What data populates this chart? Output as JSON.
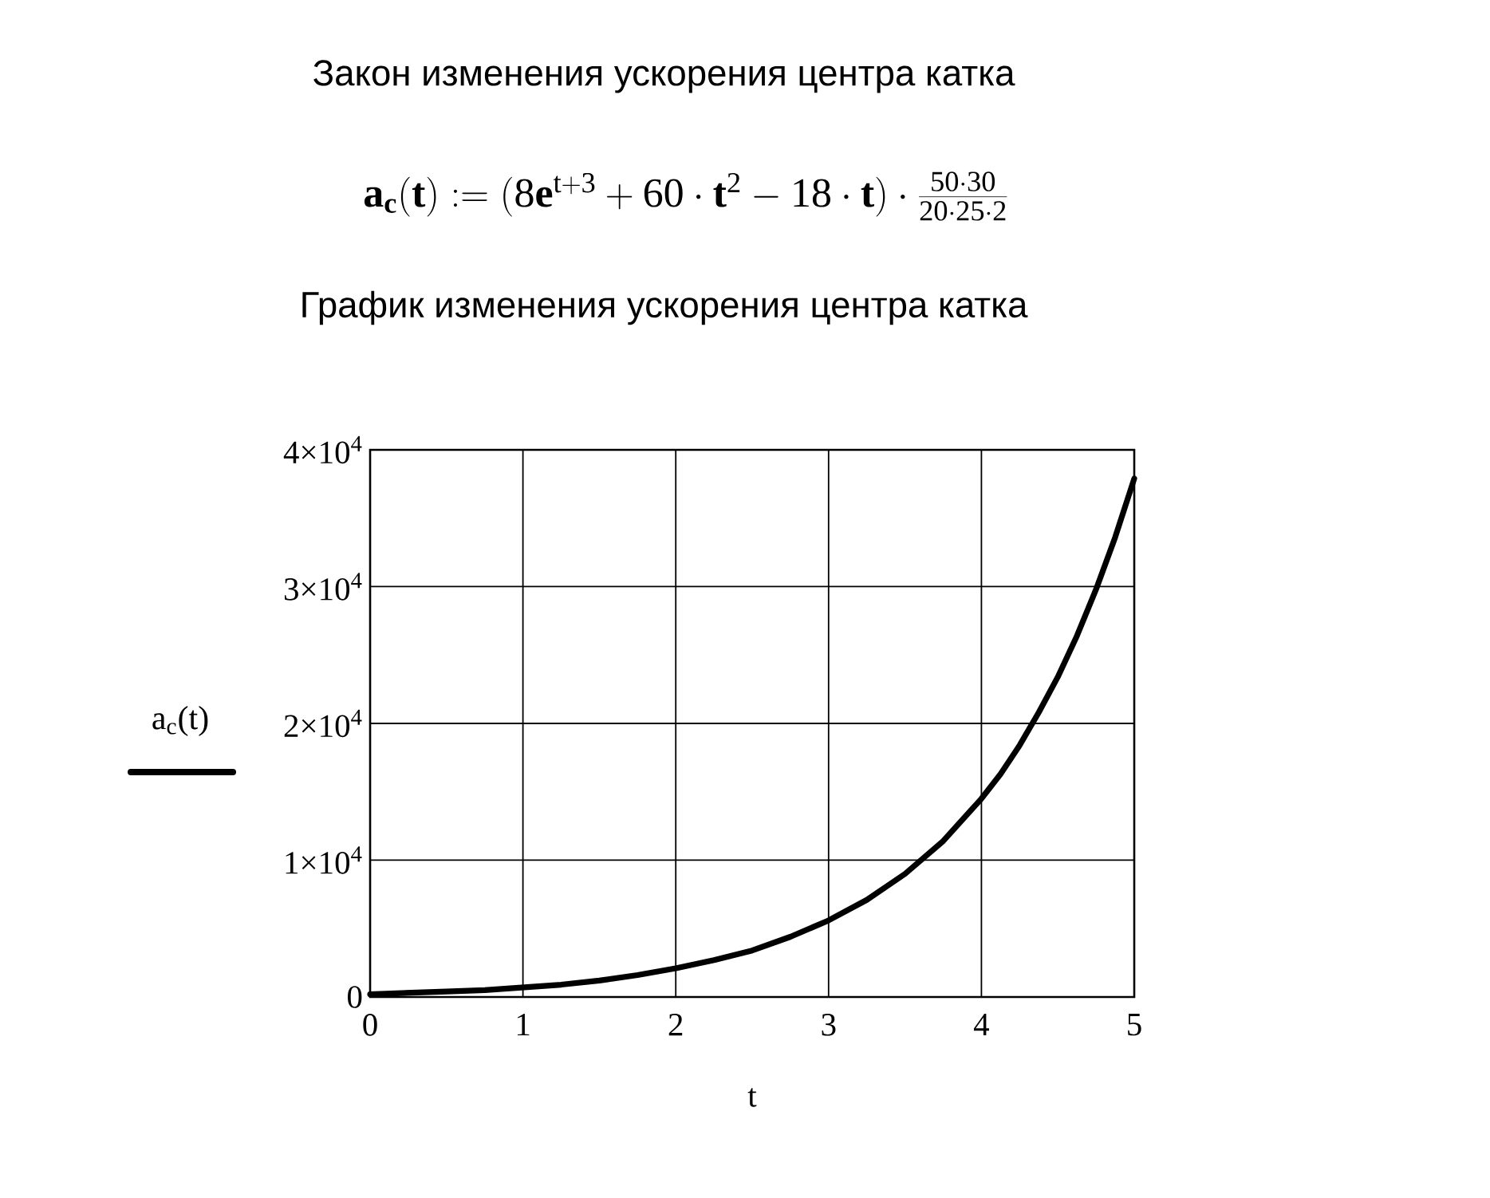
{
  "chart_data": {
    "type": "line",
    "title": "Закон изменения ускорения центра катка",
    "subtitle": "График изменения ускорения центра катка",
    "annotations": [
      "\\mathbf{a}_{\\mathbf{c}}(\\mathbf{t}) := (8\\mathbf{e}^{\\mathrm{t+3}} + 60\\cdot\\mathbf{t}^{2} - 18\\cdot\\mathbf{t})\\cdot\\frac{50\\cdot 30}{20\\cdot 25\\cdot 2}"
    ],
    "xlabel": "t",
    "series": [
      {
        "name": "a$_{c}$(t)",
        "color": "#000000",
        "x": [
          0,
          0.25,
          0.5,
          0.75,
          1,
          1.25,
          1.5,
          1.75,
          2,
          2.25,
          2.5,
          2.75,
          3,
          3.25,
          3.5,
          3.75,
          4,
          4.125,
          4.25,
          4.375,
          4.5,
          4.625,
          4.75,
          4.875,
          5
        ],
        "values": [
          200,
          300,
          400,
          500,
          700,
          900,
          1200,
          1600,
          2100,
          2700,
          3400,
          4400,
          5600,
          7100,
          9000,
          11400,
          14500,
          16300,
          18400,
          20800,
          23400,
          26400,
          29800,
          33600,
          37900
        ]
      }
    ],
    "xlim": [
      0,
      5
    ],
    "xticks": [
      0,
      1,
      2,
      3,
      4,
      5
    ],
    "ylim": [
      0,
      40000
    ],
    "yticks": [
      0,
      {
        "value": 10000,
        "label": "1×10$^{4}$"
      },
      {
        "value": 20000,
        "label": "2×10$^{4}$"
      },
      {
        "value": 30000,
        "label": "3×10$^{4}$"
      },
      {
        "value": 40000,
        "label": "4×10$^{4}$"
      }
    ],
    "grid": true,
    "legend": "left"
  }
}
